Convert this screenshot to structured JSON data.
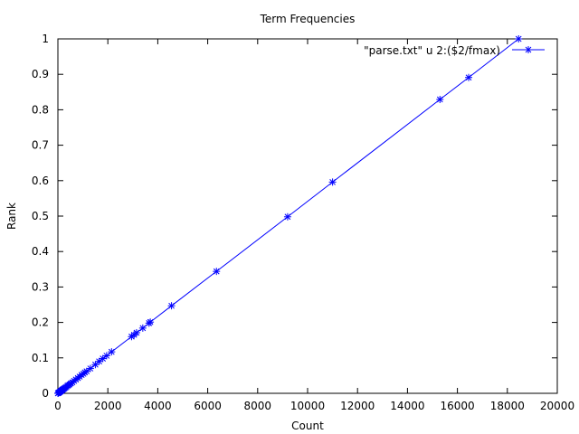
{
  "chart_data": {
    "type": "line",
    "title": "Term Frequencies",
    "xlabel": "Count",
    "ylabel": "Rank",
    "xlim": [
      0,
      20000
    ],
    "ylim": [
      0,
      1
    ],
    "x_ticks": [
      0,
      2000,
      4000,
      6000,
      8000,
      10000,
      12000,
      14000,
      16000,
      18000,
      20000
    ],
    "y_ticks": [
      0,
      0.1,
      0.2,
      0.3,
      0.4,
      0.5,
      0.6,
      0.7,
      0.8,
      0.9,
      1
    ],
    "grid": false,
    "legend_position": "top-right",
    "marker": "star",
    "series": [
      {
        "name": "\"parse.txt\" u 2:($2/fmax)",
        "color": "#0000ff",
        "x": [
          0,
          20,
          40,
          60,
          80,
          100,
          120,
          140,
          160,
          180,
          200,
          230,
          260,
          300,
          340,
          380,
          420,
          470,
          520,
          580,
          650,
          720,
          800,
          870,
          950,
          1020,
          1080,
          1150,
          1300,
          1500,
          1650,
          1800,
          1950,
          2150,
          2950,
          3050,
          3150,
          3400,
          3650,
          3700,
          4550,
          6350,
          9200,
          11000,
          15300,
          16450,
          18450
        ],
        "y": [
          0,
          0.001,
          0.002,
          0.003,
          0.004,
          0.005,
          0.0065,
          0.0075,
          0.0087,
          0.0098,
          0.011,
          0.0125,
          0.014,
          0.016,
          0.018,
          0.021,
          0.023,
          0.025,
          0.028,
          0.031,
          0.035,
          0.039,
          0.043,
          0.047,
          0.052,
          0.055,
          0.059,
          0.062,
          0.07,
          0.081,
          0.09,
          0.098,
          0.106,
          0.117,
          0.16,
          0.165,
          0.171,
          0.184,
          0.198,
          0.201,
          0.247,
          0.344,
          0.498,
          0.596,
          0.829,
          0.891,
          1.0
        ]
      }
    ]
  }
}
